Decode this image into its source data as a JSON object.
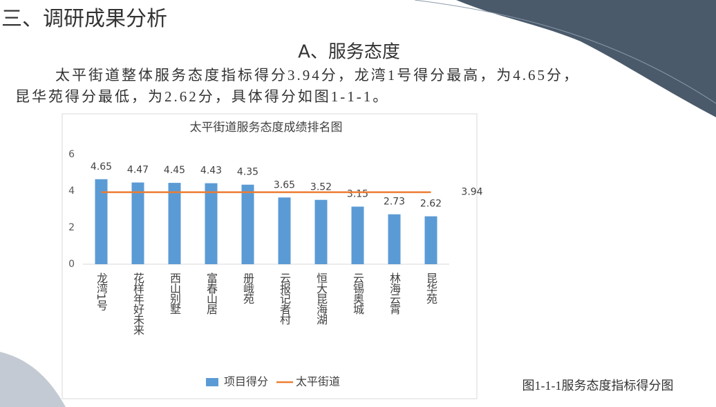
{
  "heading": "三、调研成果分析",
  "subheading": "A、服务态度",
  "paragraph": [
    "太平街道整体服务态度指标得分3.94分，龙湾1号得分最高，为4.65分，",
    "昆华苑得分最低，为2.62分，具体得分如图1-1-1。"
  ],
  "caption": "图1-1-1服务态度指标得分图",
  "chart_data": {
    "type": "bar",
    "title": "太平街道服务态度成绩排名图",
    "categories": [
      "龙湾1号",
      "花样年好未来",
      "西山别墅",
      "富春山居",
      "册峨苑",
      "云报记者村",
      "恒大昆海湖",
      "云锡奥城",
      "林海云霄",
      "昆华苑"
    ],
    "series": [
      {
        "name": "项目得分",
        "color": "#5b9bd5",
        "values": [
          4.65,
          4.47,
          4.45,
          4.43,
          4.35,
          3.65,
          3.52,
          3.15,
          2.73,
          2.62
        ]
      },
      {
        "name": "太平街道",
        "color": "#ed7d31",
        "type": "line",
        "values": [
          3.94,
          3.94,
          3.94,
          3.94,
          3.94,
          3.94,
          3.94,
          3.94,
          3.94,
          3.94
        ]
      }
    ],
    "ylim": [
      0,
      6
    ],
    "yticks": [
      0,
      2,
      4,
      6
    ],
    "grid": false,
    "legend": "bottom"
  }
}
